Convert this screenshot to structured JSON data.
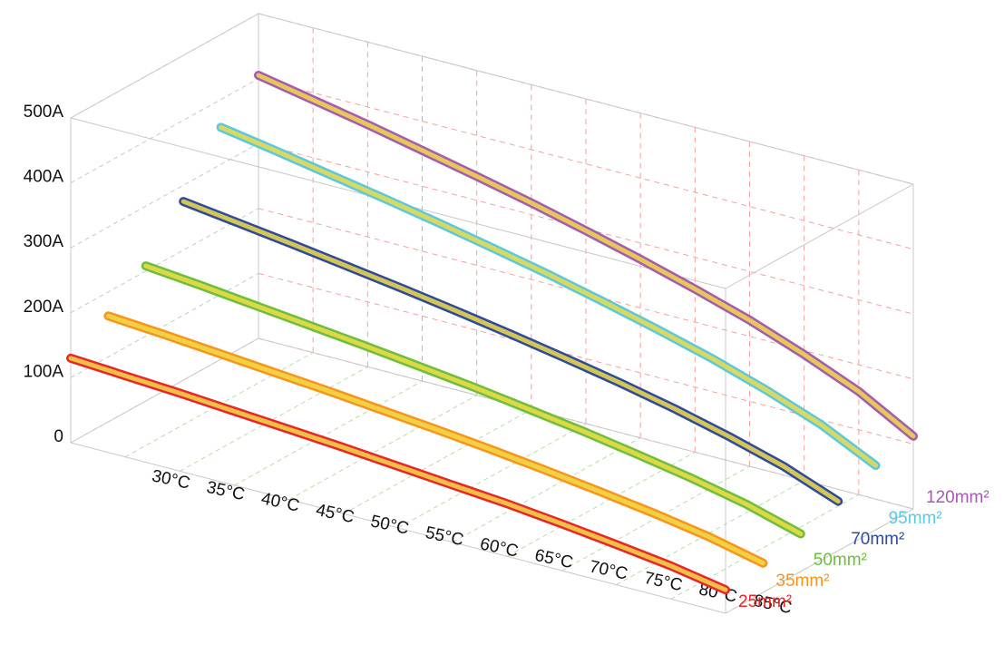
{
  "chart_data": {
    "type": "line3d",
    "x": [
      25,
      30,
      35,
      40,
      45,
      50,
      55,
      60,
      65,
      70,
      75,
      80,
      85
    ],
    "xlim": [
      25,
      85
    ],
    "xticks": [
      {
        "value": 30,
        "label": "30°C"
      },
      {
        "value": 35,
        "label": "35°C"
      },
      {
        "value": 40,
        "label": "40°C"
      },
      {
        "value": 45,
        "label": "45°C"
      },
      {
        "value": 50,
        "label": "50°C"
      },
      {
        "value": 55,
        "label": "55°C"
      },
      {
        "value": 60,
        "label": "60°C"
      },
      {
        "value": 65,
        "label": "65°C"
      },
      {
        "value": 70,
        "label": "70°C"
      },
      {
        "value": 75,
        "label": "75°C"
      },
      {
        "value": 80,
        "label": "80°C"
      },
      {
        "value": 85,
        "label": "85°C"
      }
    ],
    "ylim": [
      0,
      500
    ],
    "yticks": [
      0,
      {
        "value": 100,
        "label": "100A"
      },
      {
        "value": 200,
        "label": "200A"
      },
      {
        "value": 300,
        "label": "300A"
      },
      {
        "value": 400,
        "label": "400A"
      },
      {
        "value": 500,
        "label": "500A"
      }
    ],
    "grid": true,
    "series": [
      {
        "name": "25mm²",
        "color": "#e8262a",
        "values": [
          130,
          125,
          120,
          114,
          108,
          102,
          95,
          88,
          81,
          72,
          62,
          51,
          36
        ]
      },
      {
        "name": "35mm²",
        "color": "#f7941d",
        "values": [
          163,
          157,
          150,
          143,
          136,
          128,
          120,
          111,
          101,
          90,
          78,
          64,
          45
        ]
      },
      {
        "name": "50mm²",
        "color": "#6cbf3c",
        "values": [
          208,
          200,
          191,
          182,
          173,
          163,
          153,
          141,
          129,
          115,
          100,
          82,
          58
        ]
      },
      {
        "name": "70mm²",
        "color": "#2e4a9c",
        "values": [
          275,
          264,
          253,
          241,
          229,
          216,
          202,
          187,
          171,
          153,
          132,
          108,
          76
        ]
      },
      {
        "name": "95mm²",
        "color": "#5bc8e0",
        "values": [
          357,
          343,
          328,
          313,
          297,
          280,
          262,
          242,
          221,
          198,
          171,
          140,
          99
        ]
      },
      {
        "name": "120mm²",
        "color": "#a45bb0",
        "values": [
          405,
          389,
          373,
          355,
          337,
          318,
          297,
          275,
          251,
          225,
          194,
          159,
          112
        ]
      }
    ]
  }
}
